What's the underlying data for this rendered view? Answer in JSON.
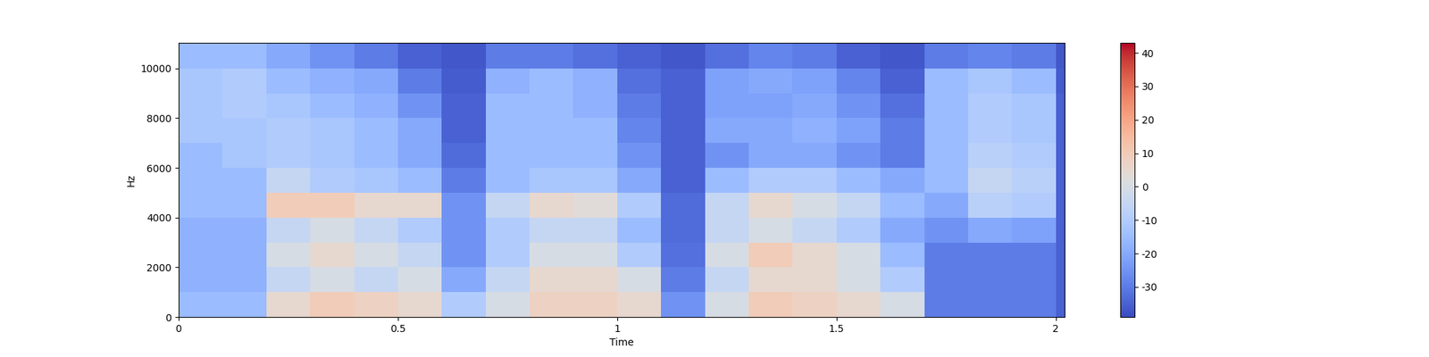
{
  "chart_data": {
    "type": "heatmap",
    "xlabel": "Time",
    "ylabel": "Hz",
    "xlim": [
      0,
      2.02
    ],
    "xticks": [
      0,
      0.5,
      1,
      1.5,
      2
    ],
    "ylim": [
      0,
      11025
    ],
    "yticks": [
      0,
      2000,
      4000,
      6000,
      8000,
      10000
    ],
    "time_edges": [
      0,
      0.1,
      0.2,
      0.3,
      0.4,
      0.5,
      0.6,
      0.7,
      0.8,
      0.9,
      1.0,
      1.1,
      1.2,
      1.3,
      1.4,
      1.5,
      1.6,
      1.7,
      1.8,
      1.9,
      2.0,
      2.02
    ],
    "freq_edges": [
      0,
      1000,
      2000,
      3000,
      4000,
      5000,
      6000,
      7000,
      8000,
      9000,
      10000,
      11025
    ],
    "cells": [
      [
        -15,
        -15,
        5,
        10,
        8,
        5,
        -10,
        0,
        8,
        8,
        5,
        -25,
        0,
        10,
        8,
        5,
        0,
        -30,
        -30,
        -30,
        -35
      ],
      [
        -18,
        -18,
        -5,
        0,
        -5,
        0,
        -20,
        -5,
        5,
        5,
        0,
        -30,
        -5,
        5,
        5,
        0,
        -10,
        -30,
        -30,
        -30,
        -35
      ],
      [
        -18,
        -18,
        0,
        5,
        0,
        -5,
        -25,
        -10,
        0,
        0,
        -10,
        -32,
        0,
        10,
        5,
        0,
        -15,
        -30,
        -30,
        -30,
        -35
      ],
      [
        -18,
        -18,
        -5,
        0,
        -5,
        -10,
        -25,
        -10,
        -5,
        -5,
        -15,
        -33,
        -5,
        0,
        -5,
        -10,
        -20,
        -25,
        -20,
        -22,
        -35
      ],
      [
        -15,
        -15,
        10,
        10,
        5,
        5,
        -25,
        -5,
        5,
        3,
        -10,
        -33,
        -5,
        5,
        0,
        -5,
        -15,
        -20,
        -8,
        -10,
        -35
      ],
      [
        -15,
        -15,
        -5,
        -10,
        -12,
        -15,
        -30,
        -15,
        -12,
        -12,
        -20,
        -35,
        -15,
        -10,
        -10,
        -15,
        -20,
        -15,
        -5,
        -8,
        -35
      ],
      [
        -15,
        -12,
        -10,
        -12,
        -15,
        -20,
        -33,
        -15,
        -15,
        -15,
        -25,
        -35,
        -25,
        -20,
        -20,
        -25,
        -30,
        -15,
        -8,
        -10,
        -35
      ],
      [
        -12,
        -12,
        -10,
        -12,
        -15,
        -20,
        -35,
        -15,
        -15,
        -15,
        -28,
        -35,
        -20,
        -20,
        -18,
        -22,
        -30,
        -15,
        -10,
        -12,
        -35
      ],
      [
        -12,
        -10,
        -12,
        -15,
        -18,
        -25,
        -35,
        -15,
        -15,
        -18,
        -30,
        -35,
        -22,
        -22,
        -20,
        -25,
        -32,
        -15,
        -10,
        -12,
        -35
      ],
      [
        -12,
        -10,
        -15,
        -18,
        -20,
        -30,
        -36,
        -18,
        -15,
        -18,
        -32,
        -35,
        -22,
        -20,
        -22,
        -28,
        -35,
        -15,
        -12,
        -15,
        -36
      ],
      [
        -15,
        -15,
        -20,
        -25,
        -30,
        -35,
        -37,
        -30,
        -30,
        -32,
        -35,
        -37,
        -32,
        -28,
        -30,
        -35,
        -37,
        -30,
        -28,
        -30,
        -37
      ]
    ],
    "colorbar_range": [
      -39,
      43
    ],
    "colorbar_ticks": [
      -30,
      -20,
      -10,
      0,
      10,
      20,
      30,
      40
    ]
  }
}
